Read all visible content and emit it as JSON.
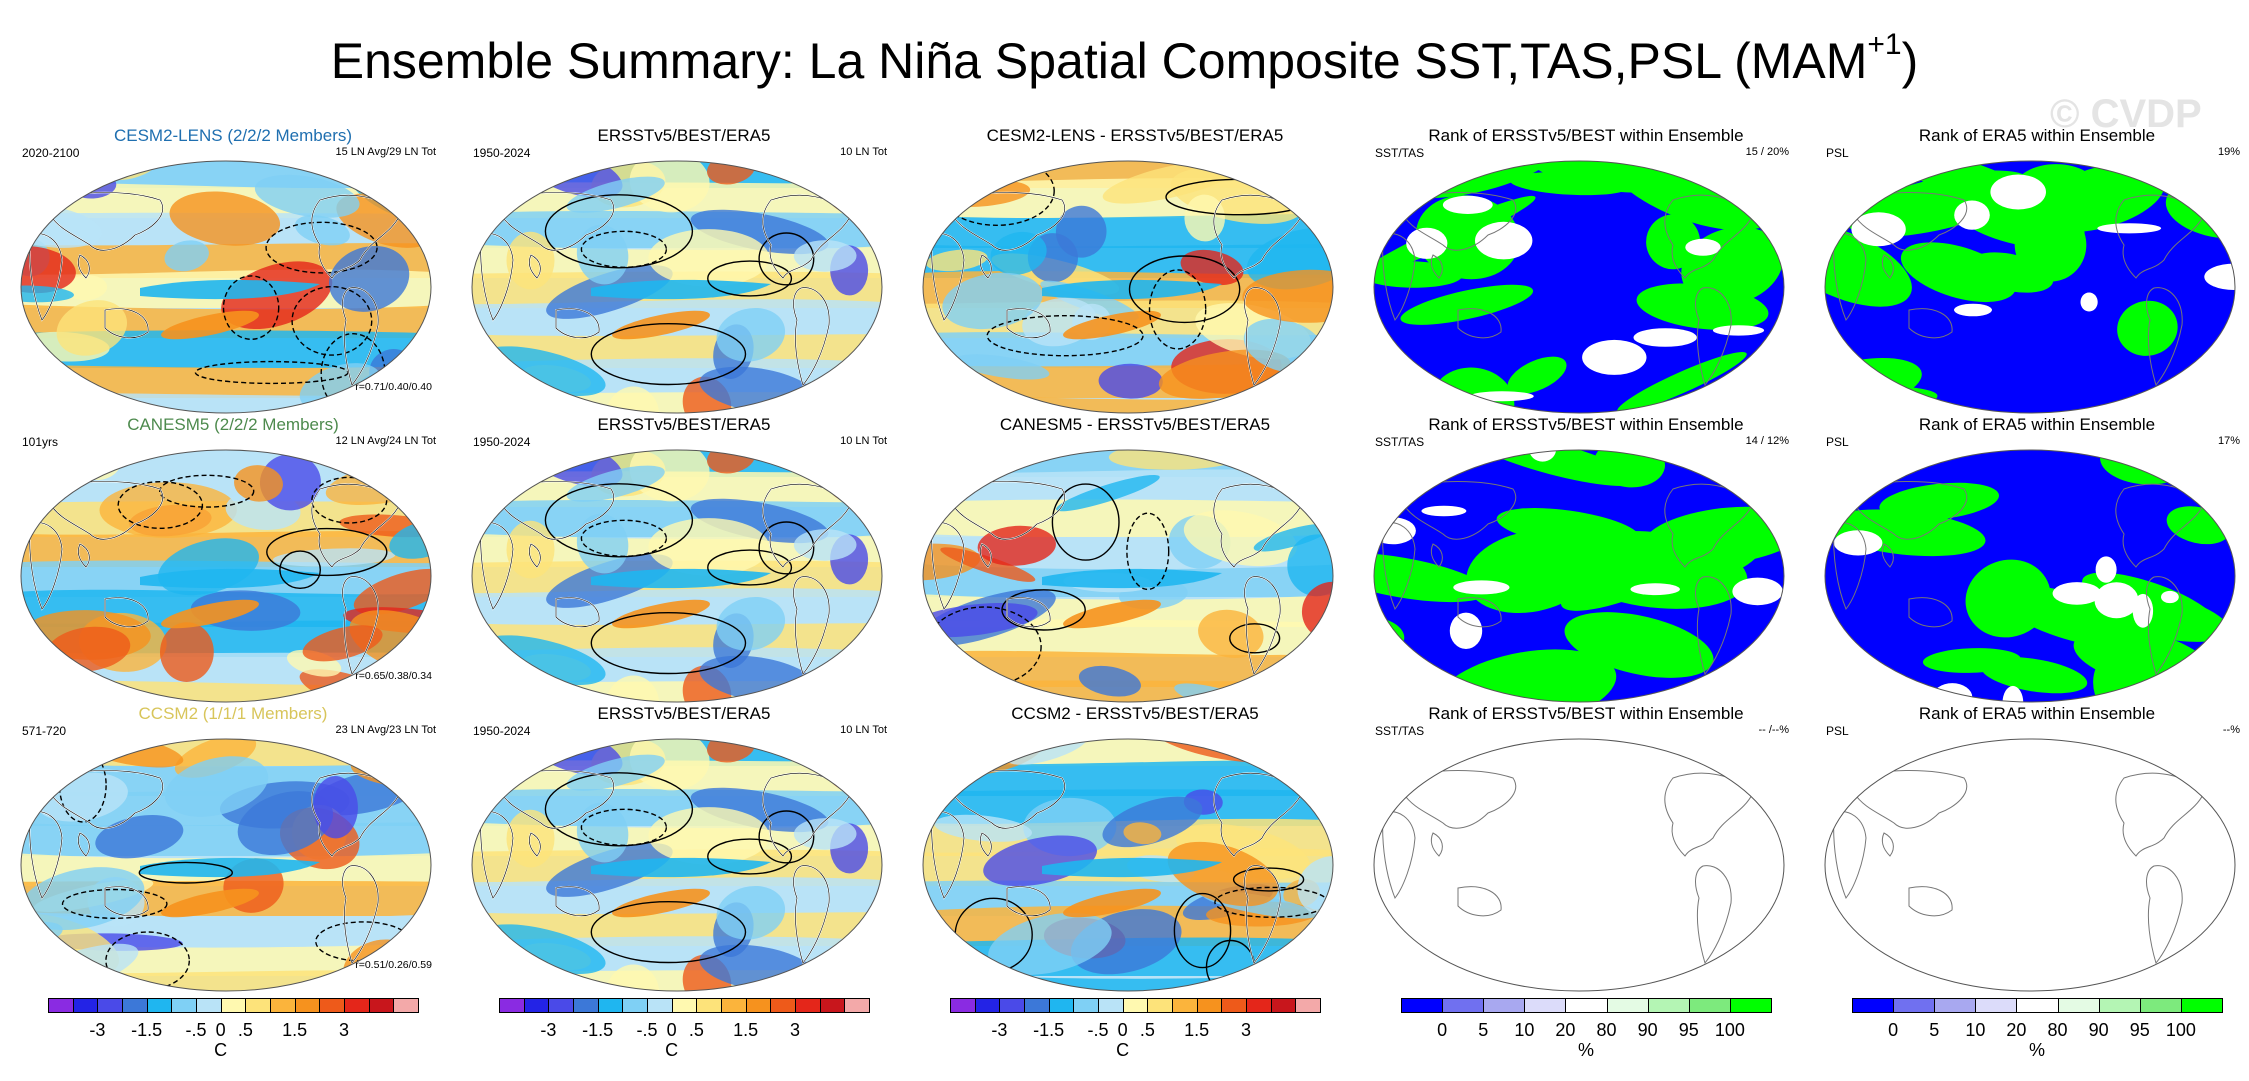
{
  "title": {
    "main": "Ensemble Summary: La Niña Spatial Composite SST,TAS,PSL (MAM",
    "sup": "+1",
    "close": ")"
  },
  "watermark": "© CVDP",
  "colors": {
    "temp_scale": [
      "#8a2be2",
      "#2323e6",
      "#4a4ae8",
      "#3c78d8",
      "#1fb6f0",
      "#7fd0f5",
      "#b9e3f7",
      "#fff9b0",
      "#fde37a",
      "#fbb43c",
      "#f6921e",
      "#ee5a1a",
      "#e4261a",
      "#c8161c",
      "#f3a9a9"
    ],
    "rank_scale": [
      "#0000ff",
      "#7070f0",
      "#a8a8f0",
      "#dcdcfa",
      "#ffffff",
      "#e4fbe4",
      "#b4f5b4",
      "#7dea7d",
      "#00ff00"
    ],
    "cesm_title": "#1f6fb0",
    "canesm_title": "#4d8a4d",
    "ccsm_title": "#d8c55a"
  },
  "rows": [
    {
      "model": {
        "title": "CESM2-LENS (2/2/2 Members)",
        "left": "2020-2100",
        "right": "15 LN Avg/29 LN Tot",
        "corr": "r=0.71/0.40/0.40"
      },
      "obs": {
        "title": "ERSSTv5/BEST/ERA5",
        "left": "1950-2024",
        "right": "10 LN Tot"
      },
      "diff": {
        "title": "CESM2-LENS - ERSSTv5/BEST/ERA5"
      },
      "rank1": {
        "title": "Rank of ERSSTv5/BEST within Ensemble",
        "left": "SST/TAS",
        "right": "15 /  20%"
      },
      "rank2": {
        "title": "Rank of ERA5 within Ensemble",
        "left": "PSL",
        "right": "19%"
      }
    },
    {
      "model": {
        "title": "CANESM5 (2/2/2 Members)",
        "left": "101yrs",
        "right": "12 LN Avg/24 LN Tot",
        "corr": "r=0.65/0.38/0.34"
      },
      "obs": {
        "title": "ERSSTv5/BEST/ERA5",
        "left": "1950-2024",
        "right": "10 LN Tot"
      },
      "diff": {
        "title": "CANESM5 - ERSSTv5/BEST/ERA5"
      },
      "rank1": {
        "title": "Rank of ERSSTv5/BEST within Ensemble",
        "left": "SST/TAS",
        "right": "14 /  12%"
      },
      "rank2": {
        "title": "Rank of ERA5 within Ensemble",
        "left": "PSL",
        "right": "17%"
      }
    },
    {
      "model": {
        "title": "CCSM2 (1/1/1 Members)",
        "left": "571-720",
        "right": "23 LN Avg/23 LN Tot",
        "corr": "r=0.51/0.26/0.59"
      },
      "obs": {
        "title": "ERSSTv5/BEST/ERA5",
        "left": "1950-2024",
        "right": "10 LN Tot"
      },
      "diff": {
        "title": "CCSM2 - ERSSTv5/BEST/ERA5"
      },
      "rank1": {
        "title": "Rank of ERSSTv5/BEST within Ensemble",
        "left": "SST/TAS",
        "right": "-- /--%"
      },
      "rank2": {
        "title": "Rank of ERA5 within Ensemble",
        "left": "PSL",
        "right": "--%"
      }
    }
  ],
  "colorbars": {
    "temp_ticks": [
      "-3",
      "-1.5",
      "-.5",
      "0",
      ".5",
      "1.5",
      "3"
    ],
    "temp_unit": "C",
    "rank_ticks": [
      "0",
      "5",
      "10",
      "20",
      "80",
      "90",
      "95",
      "100"
    ],
    "rank_unit": "%"
  }
}
